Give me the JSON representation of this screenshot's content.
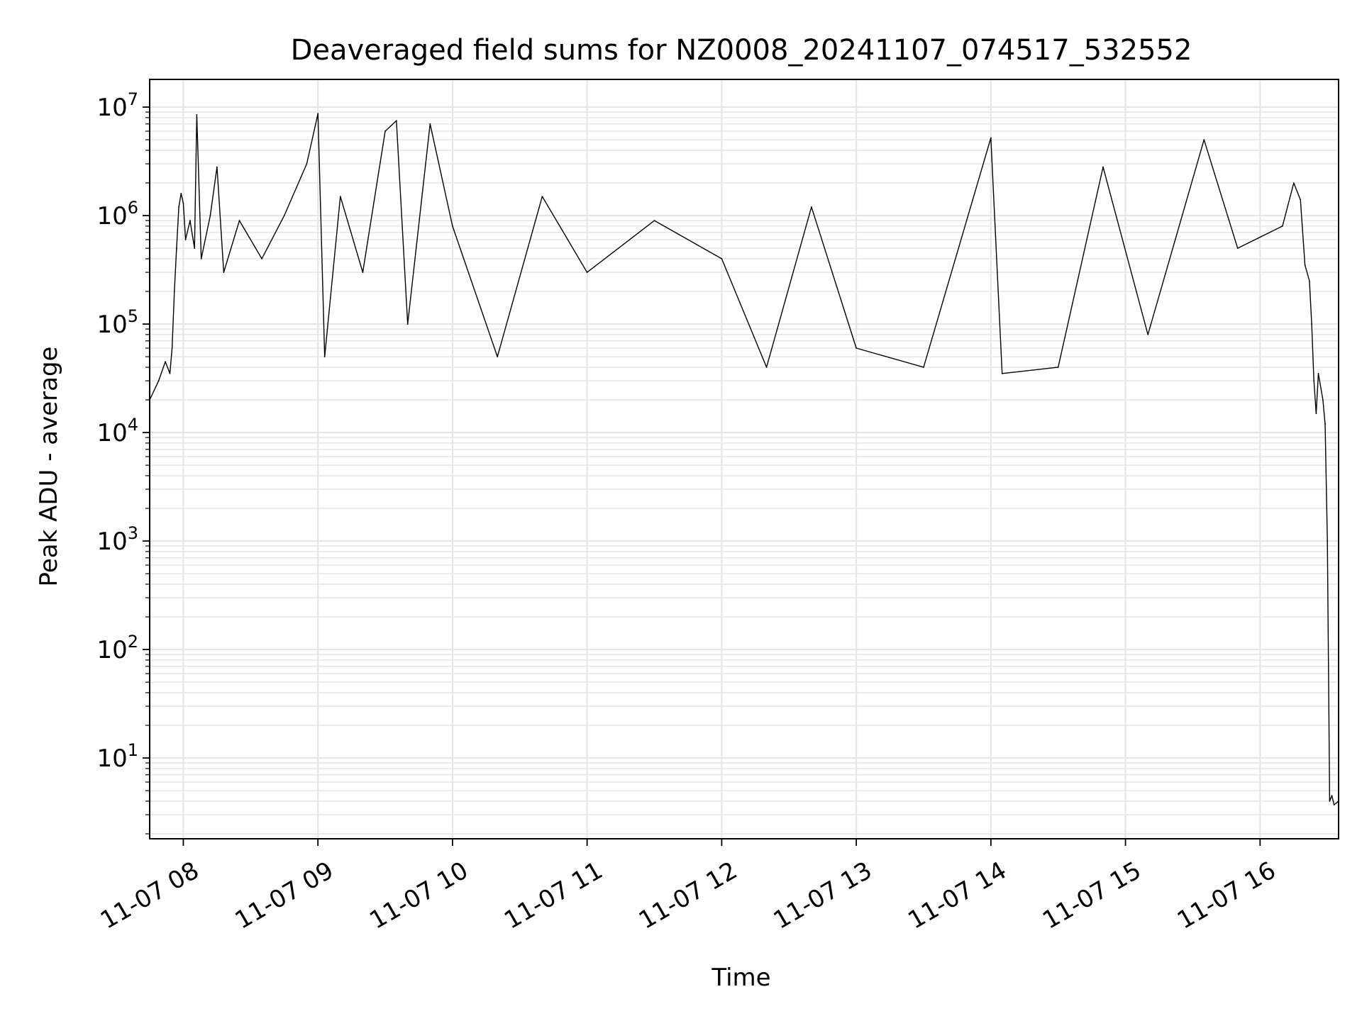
{
  "chart_data": {
    "type": "line",
    "title": "Deaveraged field sums for NZ0008_20241107_074517_532552",
    "xlabel": "Time",
    "ylabel": "Peak ADU - average",
    "yscale": "log",
    "grid": true,
    "x_ticks": [
      "11-07 08",
      "11-07 09",
      "11-07 10",
      "11-07 11",
      "11-07 12",
      "11-07 13",
      "11-07 14",
      "11-07 15",
      "11-07 16"
    ],
    "y_ticks": [
      {
        "base": "10",
        "exp": "1"
      },
      {
        "base": "10",
        "exp": "2"
      },
      {
        "base": "10",
        "exp": "3"
      },
      {
        "base": "10",
        "exp": "4"
      },
      {
        "base": "10",
        "exp": "5"
      },
      {
        "base": "10",
        "exp": "6"
      },
      {
        "base": "10",
        "exp": "7"
      }
    ],
    "xlim": [
      "2024-11-07 07:45",
      "2024-11-07 16:35"
    ],
    "ylim": [
      1.8,
      18000000
    ],
    "line_color": "#000000",
    "grid_color": "#e6e6e6",
    "series": [
      {
        "values": [
          [
            "2024-11-07 07:45",
            20000
          ],
          [
            "2024-11-07 07:49",
            30000
          ],
          [
            "2024-11-07 07:52",
            45000
          ],
          [
            "2024-11-07 07:54",
            35000
          ],
          [
            "2024-11-07 07:55",
            60000
          ],
          [
            "2024-11-07 07:56",
            200000
          ],
          [
            "2024-11-07 07:57",
            500000
          ],
          [
            "2024-11-07 07:58",
            1200000
          ],
          [
            "2024-11-07 07:59",
            1600000
          ],
          [
            "2024-11-07 08:00",
            1300000
          ],
          [
            "2024-11-07 08:01",
            600000
          ],
          [
            "2024-11-07 08:03",
            900000
          ],
          [
            "2024-11-07 08:05",
            500000
          ],
          [
            "2024-11-07 08:06",
            8500000
          ],
          [
            "2024-11-07 08:08",
            400000
          ],
          [
            "2024-11-07 08:12",
            1000000
          ],
          [
            "2024-11-07 08:15",
            2800000
          ],
          [
            "2024-11-07 08:18",
            300000
          ],
          [
            "2024-11-07 08:25",
            900000
          ],
          [
            "2024-11-07 08:35",
            400000
          ],
          [
            "2024-11-07 08:45",
            1000000
          ],
          [
            "2024-11-07 08:55",
            3000000
          ],
          [
            "2024-11-07 09:00",
            8700000
          ],
          [
            "2024-11-07 09:03",
            50000
          ],
          [
            "2024-11-07 09:10",
            1500000
          ],
          [
            "2024-11-07 09:20",
            300000
          ],
          [
            "2024-11-07 09:30",
            6000000
          ],
          [
            "2024-11-07 09:35",
            7500000
          ],
          [
            "2024-11-07 09:40",
            100000
          ],
          [
            "2024-11-07 09:50",
            7000000
          ],
          [
            "2024-11-07 10:00",
            800000
          ],
          [
            "2024-11-07 10:20",
            50000
          ],
          [
            "2024-11-07 10:40",
            1500000
          ],
          [
            "2024-11-07 11:00",
            300000
          ],
          [
            "2024-11-07 11:30",
            900000
          ],
          [
            "2024-11-07 12:00",
            400000
          ],
          [
            "2024-11-07 12:20",
            40000
          ],
          [
            "2024-11-07 12:40",
            1200000
          ],
          [
            "2024-11-07 13:00",
            60000
          ],
          [
            "2024-11-07 13:30",
            40000
          ],
          [
            "2024-11-07 14:00",
            5200000
          ],
          [
            "2024-11-07 14:05",
            35000
          ],
          [
            "2024-11-07 14:30",
            40000
          ],
          [
            "2024-11-07 14:50",
            2800000
          ],
          [
            "2024-11-07 15:10",
            80000
          ],
          [
            "2024-11-07 15:35",
            5000000
          ],
          [
            "2024-11-07 15:50",
            500000
          ],
          [
            "2024-11-07 16:10",
            800000
          ],
          [
            "2024-11-07 16:15",
            2000000
          ],
          [
            "2024-11-07 16:18",
            1400000
          ],
          [
            "2024-11-07 16:20",
            350000
          ],
          [
            "2024-11-07 16:22",
            250000
          ],
          [
            "2024-11-07 16:23",
            100000
          ],
          [
            "2024-11-07 16:24",
            30000
          ],
          [
            "2024-11-07 16:25",
            15000
          ],
          [
            "2024-11-07 16:26",
            35000
          ],
          [
            "2024-11-07 16:28",
            20000
          ],
          [
            "2024-11-07 16:29",
            12000
          ],
          [
            "2024-11-07 16:30",
            1000
          ],
          [
            "2024-11-07 16:31",
            4
          ],
          [
            "2024-11-07 16:32",
            4.5
          ],
          [
            "2024-11-07 16:33",
            3.7
          ],
          [
            "2024-11-07 16:35",
            4
          ]
        ]
      }
    ]
  }
}
